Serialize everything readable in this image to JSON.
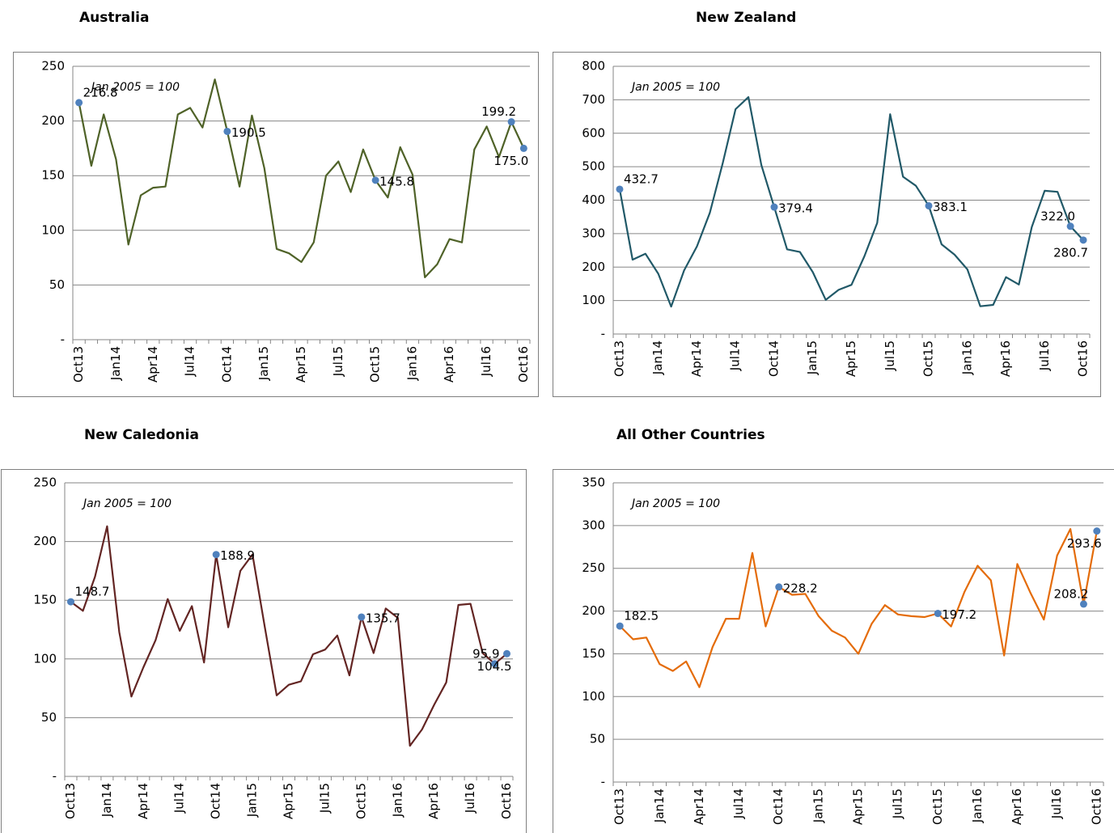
{
  "chart_data": [
    {
      "type": "line",
      "title": "Australia",
      "annotation": "Jan 2005 = 100",
      "categories": [
        "Oct13",
        null,
        null,
        "Jan14",
        null,
        null,
        "Apr14",
        null,
        null,
        "Jul14",
        null,
        null,
        "Oct14",
        null,
        null,
        "Jan15",
        null,
        null,
        "Apr15",
        null,
        null,
        "Jul15",
        null,
        null,
        "Oct15",
        null,
        null,
        "Jan16",
        null,
        null,
        "Apr16",
        null,
        null,
        "Jul16",
        null,
        null,
        "Oct16"
      ],
      "values": [
        216.8,
        159,
        206,
        165,
        87,
        132,
        139,
        140,
        206,
        212,
        194,
        238,
        190.5,
        140,
        205,
        157,
        83,
        79,
        71,
        89,
        150,
        163,
        135,
        174,
        145.8,
        130,
        176,
        151,
        57,
        69,
        92,
        89,
        174,
        195,
        167,
        199.2,
        175
      ],
      "value_labels": [
        "216.8",
        null,
        null,
        null,
        null,
        null,
        null,
        null,
        null,
        null,
        null,
        null,
        "190.5",
        null,
        null,
        null,
        null,
        null,
        null,
        null,
        null,
        null,
        null,
        null,
        "145.8",
        null,
        null,
        null,
        null,
        null,
        null,
        null,
        null,
        null,
        null,
        "199.2",
        "175.0"
      ],
      "color": "#4f6228",
      "marker_color": "#4f81bd",
      "ylim": [
        0,
        250
      ],
      "yticks": [
        {
          "value": 0,
          "label": "-"
        },
        50,
        100,
        150,
        200,
        250
      ],
      "grid": true
    },
    {
      "type": "line",
      "title": "New Zealand",
      "annotation": "Jan 2005 = 100",
      "categories": [
        "Oct13",
        null,
        null,
        "Jan14",
        null,
        null,
        "Apr14",
        null,
        null,
        "Jul14",
        null,
        null,
        "Oct14",
        null,
        null,
        "Jan15",
        null,
        null,
        "Apr15",
        null,
        null,
        "Jul15",
        null,
        null,
        "Oct15",
        null,
        null,
        "Jan16",
        null,
        null,
        "Apr16",
        null,
        null,
        "Jul16",
        null,
        null,
        "Oct16"
      ],
      "values": [
        432.7,
        222,
        240,
        180,
        82,
        190,
        262,
        362,
        510,
        672,
        708,
        505,
        379.4,
        253,
        245,
        185,
        102,
        132,
        147,
        232,
        332,
        657,
        470,
        443,
        383.1,
        268,
        237,
        193,
        83,
        87,
        170,
        148,
        320,
        428,
        425,
        322.0,
        280.7
      ],
      "value_labels": [
        "432.7",
        null,
        null,
        null,
        null,
        null,
        null,
        null,
        null,
        null,
        null,
        null,
        "379.4",
        null,
        null,
        null,
        null,
        null,
        null,
        null,
        null,
        null,
        null,
        null,
        "383.1",
        null,
        null,
        null,
        null,
        null,
        null,
        null,
        null,
        null,
        null,
        "322.0",
        "280.7"
      ],
      "color": "#215968",
      "marker_color": "#4f81bd",
      "ylim": [
        0,
        800
      ],
      "yticks": [
        {
          "value": 0,
          "label": "-"
        },
        100,
        200,
        300,
        400,
        500,
        600,
        700,
        800
      ],
      "grid": true
    },
    {
      "type": "line",
      "title": "New Caledonia",
      "annotation": "Jan 2005 = 100",
      "categories": [
        "Oct13",
        null,
        null,
        "Jan14",
        null,
        null,
        "Apr14",
        null,
        null,
        "Jul14",
        null,
        null,
        "Oct14",
        null,
        null,
        "Jan15",
        null,
        null,
        "Apr15",
        null,
        null,
        "Jul15",
        null,
        null,
        "Oct15",
        null,
        null,
        "Jan16",
        null,
        null,
        "Apr16",
        null,
        null,
        "Jul16",
        null,
        null,
        "Oct16"
      ],
      "values": [
        148.7,
        141,
        170,
        213,
        123,
        68,
        93,
        116,
        151,
        124,
        145,
        97,
        188.9,
        127,
        175,
        189,
        128,
        69,
        78,
        81,
        104,
        108,
        120,
        86,
        135.7,
        105,
        143,
        135,
        26,
        40,
        61,
        80,
        146,
        147,
        105,
        95.9,
        104.5
      ],
      "value_labels": [
        "148.7",
        null,
        null,
        null,
        null,
        null,
        null,
        null,
        null,
        null,
        null,
        null,
        "188.9",
        null,
        null,
        null,
        null,
        null,
        null,
        null,
        null,
        null,
        null,
        null,
        "135.7",
        null,
        null,
        null,
        null,
        null,
        null,
        null,
        null,
        null,
        null,
        "95.9",
        "104.5"
      ],
      "color": "#632523",
      "marker_color": "#4f81bd",
      "ylim": [
        0,
        250
      ],
      "yticks": [
        {
          "value": 0,
          "label": "-"
        },
        50,
        100,
        150,
        200,
        250
      ],
      "grid": true
    },
    {
      "type": "line",
      "title": "All Other Countries",
      "annotation": "Jan 2005 = 100",
      "categories": [
        "Oct13",
        null,
        null,
        "Jan14",
        null,
        null,
        "Apr14",
        null,
        null,
        "Jul14",
        null,
        null,
        "Oct14",
        null,
        null,
        "Jan15",
        null,
        null,
        "Apr15",
        null,
        null,
        "Jul15",
        null,
        null,
        "Oct15",
        null,
        null,
        "Jan16",
        null,
        null,
        "Apr16",
        null,
        null,
        "Jul16",
        null,
        null,
        "Oct16"
      ],
      "values": [
        182.5,
        167,
        169,
        138,
        130,
        141,
        111,
        158,
        191,
        191,
        268,
        182,
        228.2,
        219,
        220,
        194,
        177,
        169,
        150,
        185,
        207,
        196,
        194,
        193,
        197.2,
        182,
        222,
        253,
        236,
        148,
        255,
        221,
        190,
        265,
        296,
        208.2,
        293.6
      ],
      "value_labels": [
        "182.5",
        null,
        null,
        null,
        null,
        null,
        null,
        null,
        null,
        null,
        null,
        null,
        "228.2",
        null,
        null,
        null,
        null,
        null,
        null,
        null,
        null,
        null,
        null,
        null,
        "197.2",
        null,
        null,
        null,
        null,
        null,
        null,
        null,
        null,
        null,
        null,
        "208.2",
        "293.6"
      ],
      "color": "#e46c0a",
      "marker_color": "#4f81bd",
      "ylim": [
        0,
        350
      ],
      "yticks": [
        {
          "value": 0,
          "label": "-"
        },
        50,
        100,
        150,
        200,
        250,
        300,
        350
      ],
      "grid": true
    }
  ]
}
